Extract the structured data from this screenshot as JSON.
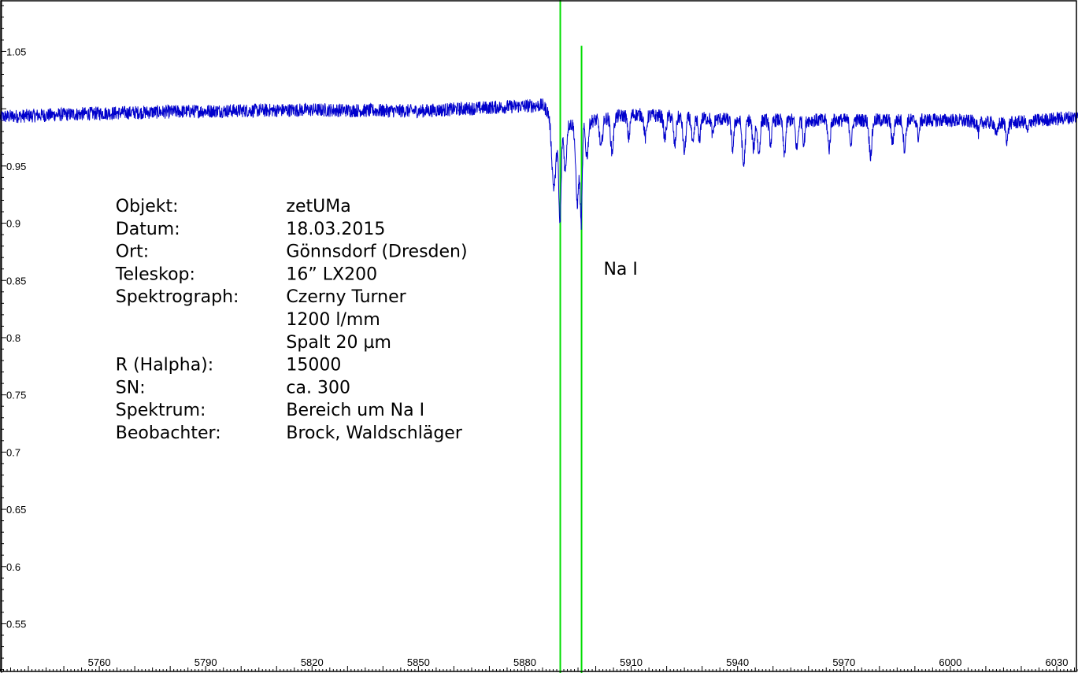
{
  "chart_data": {
    "type": "line",
    "title": "",
    "xlabel": "",
    "ylabel": "",
    "xlim": [
      5732,
      6036
    ],
    "ylim": [
      0.507,
      1.095
    ],
    "x_ticks": [
      5760,
      5790,
      5820,
      5850,
      5880,
      5910,
      5940,
      5970,
      6000,
      6030
    ],
    "y_ticks": [
      0.55,
      0.6,
      0.65,
      0.7,
      0.75,
      0.8,
      0.85,
      0.9,
      0.95,
      1.05
    ],
    "grid": false,
    "colors": {
      "spectrum": "#0000cc",
      "markers": "#00dd00",
      "axis": "#000000"
    },
    "series": [
      {
        "color": "#0000cc",
        "continuum": [
          [
            5732,
            0.993
          ],
          [
            5760,
            0.996
          ],
          [
            5790,
            0.998
          ],
          [
            5820,
            0.999
          ],
          [
            5850,
            0.998
          ],
          [
            5870,
            1.001
          ],
          [
            5885,
            1.003
          ],
          [
            5890,
            0.985
          ],
          [
            5900,
            0.99
          ],
          [
            5910,
            0.995
          ],
          [
            5940,
            0.99
          ],
          [
            5970,
            0.99
          ],
          [
            6000,
            0.99
          ],
          [
            6015,
            0.987
          ],
          [
            6036,
            0.993
          ]
        ],
        "absorption_lines": [
          [
            5888.2,
            0.06,
            0.6
          ],
          [
            5889.9,
            0.085,
            0.35
          ],
          [
            5891.4,
            0.04,
            0.35
          ],
          [
            5894.8,
            0.07,
            0.45
          ],
          [
            5895.9,
            0.085,
            0.3
          ],
          [
            5897.5,
            0.03,
            0.4
          ],
          [
            5901.5,
            0.025,
            0.4
          ],
          [
            5904.6,
            0.03,
            0.4
          ],
          [
            5909.3,
            0.02,
            0.35
          ],
          [
            5914.0,
            0.02,
            0.35
          ],
          [
            5919.5,
            0.02,
            0.35
          ],
          [
            5922.3,
            0.025,
            0.35
          ],
          [
            5925.0,
            0.03,
            0.4
          ],
          [
            5927.4,
            0.025,
            0.35
          ],
          [
            5929.2,
            0.02,
            0.3
          ],
          [
            5933.0,
            0.015,
            0.3
          ],
          [
            5938.6,
            0.025,
            0.35
          ],
          [
            5941.7,
            0.04,
            0.4
          ],
          [
            5944.5,
            0.025,
            0.35
          ],
          [
            5946.0,
            0.03,
            0.35
          ],
          [
            5949.3,
            0.02,
            0.35
          ],
          [
            5953.2,
            0.03,
            0.35
          ],
          [
            5956.7,
            0.025,
            0.35
          ],
          [
            5958.7,
            0.02,
            0.3
          ],
          [
            5965.8,
            0.025,
            0.35
          ],
          [
            5972.0,
            0.02,
            0.35
          ],
          [
            5977.5,
            0.03,
            0.4
          ],
          [
            5983.7,
            0.02,
            0.35
          ],
          [
            5987.1,
            0.025,
            0.35
          ],
          [
            5991.0,
            0.015,
            0.3
          ],
          [
            6008.0,
            0.01,
            0.3
          ],
          [
            6013.0,
            0.012,
            0.3
          ],
          [
            6016.0,
            0.015,
            0.3
          ],
          [
            6021.8,
            0.01,
            0.3
          ]
        ],
        "noise_amplitude": 0.006
      }
    ],
    "vertical_markers": [
      {
        "x": 5890.0,
        "y_top": 1.095,
        "y_bottom": 0.507,
        "color": "#00dd00"
      },
      {
        "x": 5896.0,
        "y_top": 1.055,
        "y_bottom": 0.507,
        "color": "#00dd00"
      }
    ],
    "annotations": [
      {
        "text": "Na I",
        "x": 5902.2,
        "y": 0.855
      }
    ],
    "info_box": {
      "x_left": 5764.6,
      "x_right": 5812.7,
      "y_first": 0.91,
      "rows": [
        {
          "label": "Objekt:",
          "value": "zetUMa"
        },
        {
          "label": "Datum:",
          "value": "18.03.2015"
        },
        {
          "label": "Ort:",
          "value": "Gönnsdorf (Dresden)"
        },
        {
          "label": "Teleskop:",
          "value": "16” LX200"
        },
        {
          "label": "Spektrograph:",
          "value": "Czerny Turner"
        },
        {
          "label": "",
          "value": "1200 l/mm"
        },
        {
          "label": "",
          "value": "Spalt 20 µm"
        },
        {
          "label": "R (Halpha):",
          "value": "15000"
        },
        {
          "label": "SN:",
          "value": "ca. 300"
        },
        {
          "label": "Spektrum:",
          "value": "Bereich um Na I"
        },
        {
          "label": "Beobachter:",
          "value": "Brock, Waldschläger"
        }
      ]
    }
  }
}
